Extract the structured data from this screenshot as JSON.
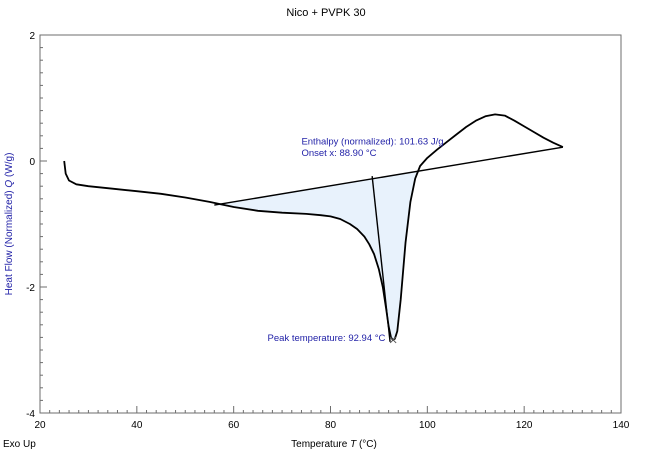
{
  "chart_data": {
    "type": "line",
    "title": "Nico + PVPK 30",
    "xlabel": "Temperature",
    "xlabel_symbol": "T",
    "xlabel_unit": "(°C)",
    "ylabel": "Heat Flow (Normalized)",
    "ylabel_symbol": "Q",
    "ylabel_unit": "(W/g)",
    "xlim": [
      20,
      140
    ],
    "ylim": [
      -4,
      2
    ],
    "x_ticks": [
      20,
      40,
      60,
      80,
      100,
      120,
      140
    ],
    "y_ticks": [
      -4,
      -2,
      0,
      2
    ],
    "grid": false,
    "corner_label": "Exo Up",
    "colors": {
      "curve": "#000000",
      "fill": "#e8f2fc",
      "annotation_text": "#2323a8",
      "axis_label": "#2323a8"
    },
    "series": [
      {
        "x": [
          25.0,
          25.3,
          26.0,
          27.5,
          30.0,
          35.0,
          40.0,
          45.0,
          50.0,
          55.0,
          60.0,
          65.0,
          70.0,
          75.0,
          78.0,
          80.0,
          82.0,
          84.0,
          85.5,
          87.0,
          88.0,
          89.0,
          90.0,
          90.8,
          91.5,
          92.0,
          92.5,
          92.9,
          93.3,
          93.8,
          94.5,
          95.5,
          96.5,
          97.5,
          98.5,
          100.0,
          102.0,
          104.0,
          106.0,
          108.0,
          110.0,
          112.0,
          114.0,
          116.0,
          118.0,
          120.0,
          122.0,
          124.0,
          126.0,
          128.0
        ],
        "y": [
          0.0,
          -0.2,
          -0.31,
          -0.37,
          -0.4,
          -0.44,
          -0.48,
          -0.52,
          -0.58,
          -0.65,
          -0.73,
          -0.79,
          -0.82,
          -0.84,
          -0.86,
          -0.88,
          -0.92,
          -1.0,
          -1.08,
          -1.2,
          -1.32,
          -1.48,
          -1.72,
          -2.0,
          -2.35,
          -2.62,
          -2.8,
          -2.84,
          -2.82,
          -2.7,
          -2.2,
          -1.3,
          -0.65,
          -0.28,
          -0.08,
          0.05,
          0.18,
          0.3,
          0.42,
          0.54,
          0.64,
          0.71,
          0.74,
          0.72,
          0.64,
          0.55,
          0.46,
          0.37,
          0.29,
          0.22
        ]
      }
    ],
    "baseline": {
      "x": [
        56.0,
        128.0
      ],
      "y": [
        -0.7,
        0.22
      ]
    },
    "onset_tangent": {
      "x": [
        88.6,
        92.3
      ],
      "y": [
        -0.24,
        -2.87
      ]
    },
    "peak_point": {
      "x": 92.94,
      "y": -2.84
    },
    "annotations": [
      {
        "text": "Enthalpy (normalized): 101.63 J/g",
        "x": 74,
        "y": 0.26
      },
      {
        "text": "Onset x: 88.90 °C",
        "x": 74,
        "y": 0.08
      },
      {
        "text": "Peak temperature: 92.94 °C",
        "x": 67,
        "y": -2.86
      }
    ]
  }
}
